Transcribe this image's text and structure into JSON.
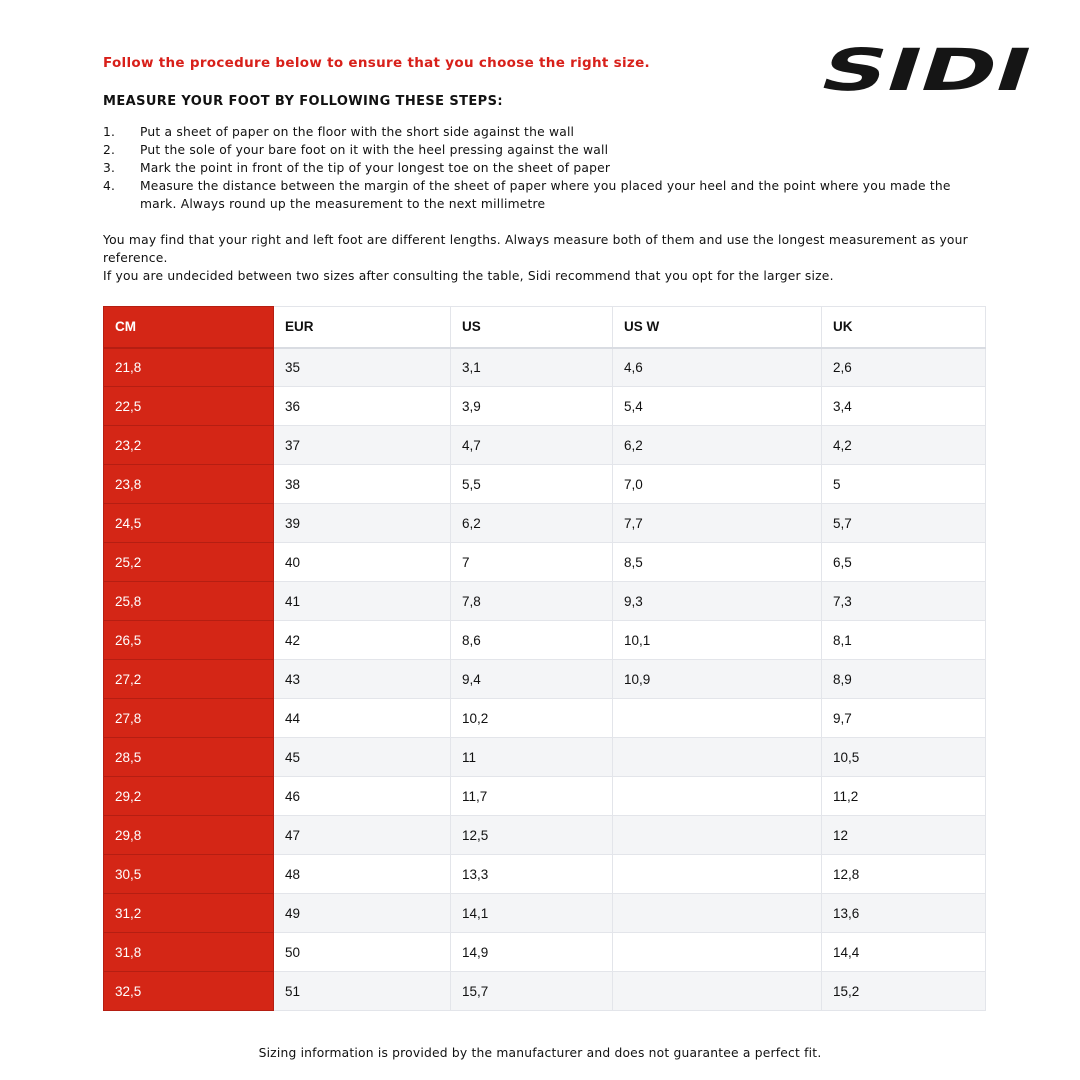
{
  "intro": "Follow the procedure below to ensure that you choose the right size.",
  "logo_text": "SIDI",
  "heading": "MEASURE YOUR FOOT BY FOLLOWING THESE STEPS:",
  "steps": [
    {
      "n": "1.",
      "text": "Put a sheet of paper on the floor with the short side against the wall"
    },
    {
      "n": "2.",
      "text": "Put the sole of your bare foot on it with the heel pressing against the wall"
    },
    {
      "n": "3.",
      "text": "Mark the point in front of the tip of your longest toe on the sheet of paper"
    },
    {
      "n": "4.",
      "text": "Measure the distance between the margin of the sheet of paper where you placed your heel and the point where you made the mark. Always round up the measurement to the next millimetre"
    }
  ],
  "para1": "You may find that your right and left foot are different lengths. Always measure both of them and use the longest measurement as your reference.",
  "para2": "If you are undecided between two sizes after consulting the table, Sidi recommend that you opt for the larger size.",
  "table": {
    "headers": [
      "CM",
      "EUR",
      "US",
      "US W",
      "UK"
    ],
    "rows": [
      [
        "21,8",
        "35",
        "3,1",
        "4,6",
        "2,6"
      ],
      [
        "22,5",
        "36",
        "3,9",
        "5,4",
        "3,4"
      ],
      [
        "23,2",
        "37",
        "4,7",
        "6,2",
        "4,2"
      ],
      [
        "23,8",
        "38",
        "5,5",
        "7,0",
        "5"
      ],
      [
        "24,5",
        "39",
        "6,2",
        "7,7",
        "5,7"
      ],
      [
        "25,2",
        "40",
        "7",
        "8,5",
        "6,5"
      ],
      [
        "25,8",
        "41",
        "7,8",
        "9,3",
        "7,3"
      ],
      [
        "26,5",
        "42",
        "8,6",
        "10,1",
        "8,1"
      ],
      [
        "27,2",
        "43",
        "9,4",
        "10,9",
        "8,9"
      ],
      [
        "27,8",
        "44",
        "10,2",
        "",
        "9,7"
      ],
      [
        "28,5",
        "45",
        "11",
        "",
        "10,5"
      ],
      [
        "29,2",
        "46",
        "11,7",
        "",
        "11,2"
      ],
      [
        "29,8",
        "47",
        "12,5",
        "",
        "12"
      ],
      [
        "30,5",
        "48",
        "13,3",
        "",
        "12,8"
      ],
      [
        "31,2",
        "49",
        "14,1",
        "",
        "13,6"
      ],
      [
        "31,8",
        "50",
        "14,9",
        "",
        "14,4"
      ],
      [
        "32,5",
        "51",
        "15,7",
        "",
        "15,2"
      ]
    ]
  },
  "footer": "Sizing information is provided by the manufacturer and does not guarantee a perfect fit.",
  "colors": {
    "accent": "#d42616",
    "text": "#111111",
    "row_alt": "#f4f5f7"
  }
}
